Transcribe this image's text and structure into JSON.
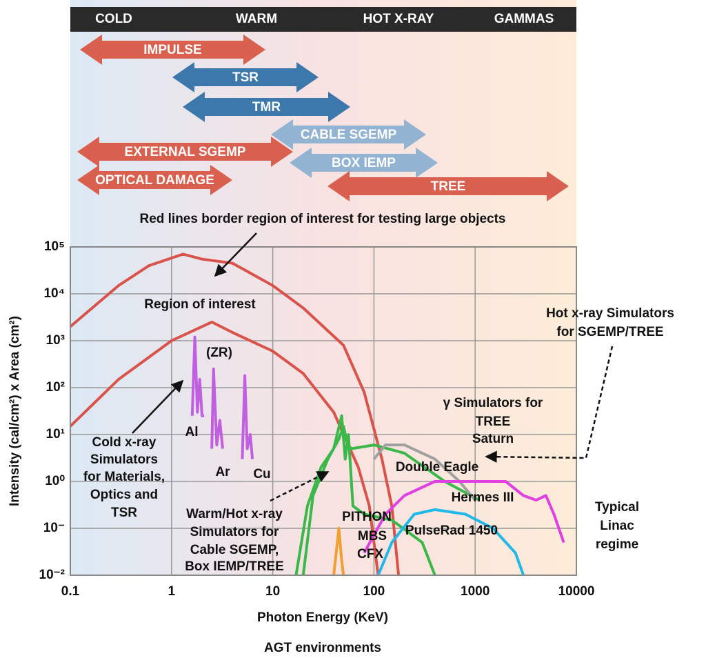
{
  "header": {
    "bands": [
      "COLD",
      "WARM",
      "HOT X-RAY",
      "GAMMAS"
    ]
  },
  "arrows": [
    "IMPULSE",
    "TSR",
    "TMR",
    "CABLE SGEMP",
    "EXTERNAL SGEMP",
    "BOX IEMP",
    "OPTICAL DAMAGE",
    "TREE"
  ],
  "chart_data": {
    "type": "line",
    "subtitle": "Red lines border region of interest for testing large objects",
    "x_label": "Photon Energy (KeV)",
    "y_label": "Intensity (cal/cm²) x Area (cm²)",
    "caption": "AGT environments",
    "xscale": "log",
    "yscale": "log",
    "grid": true,
    "xlim": [
      0.1,
      10000
    ],
    "xticks": [
      0.1,
      1,
      10,
      100,
      1000,
      10000
    ],
    "ylim": [
      0.01,
      100000
    ],
    "yticks": [
      {
        "value": 100000,
        "label": "10⁵"
      },
      {
        "value": 10000,
        "label": "10⁴"
      },
      {
        "value": 1000,
        "label": "10³"
      },
      {
        "value": 100,
        "label": "10²"
      },
      {
        "value": 10,
        "label": "10¹"
      },
      {
        "value": 1,
        "label": "10⁰"
      },
      {
        "value": 0.1,
        "label": "10⁻"
      },
      {
        "value": 0.01,
        "label": "10⁻²"
      }
    ],
    "series": [
      {
        "color": "#d9534a",
        "x": [
          0.1,
          0.3,
          0.6,
          1.3,
          2,
          4,
          10,
          20,
          50,
          80,
          120,
          150,
          175
        ],
        "values": [
          2000,
          15000,
          40000,
          70000,
          55000,
          45000,
          15000,
          5000,
          800,
          80,
          3,
          0.3,
          0.01
        ]
      },
      {
        "color": "#d9534a",
        "x": [
          0.1,
          0.3,
          1,
          2.5,
          4,
          10,
          20,
          40,
          70,
          90,
          110
        ],
        "values": [
          15,
          150,
          1000,
          2500,
          1500,
          600,
          200,
          30,
          2,
          0.3,
          0.01
        ]
      },
      {
        "name": "Al",
        "color": "#c060e0",
        "x": [
          1.6,
          1.7,
          1.8,
          1.9,
          2,
          2.1
        ],
        "values": [
          25,
          1200,
          30,
          150,
          25,
          25
        ]
      },
      {
        "name": "Ar",
        "color": "#c060e0",
        "x": [
          2.5,
          2.6,
          2.8,
          3,
          3.2
        ],
        "values": [
          5,
          250,
          6,
          20,
          5
        ]
      },
      {
        "name": "Cu",
        "color": "#c060e0",
        "x": [
          5,
          5.3,
          5.6,
          6,
          6.3
        ],
        "values": [
          3,
          180,
          5,
          10,
          3
        ]
      },
      {
        "name": "PITHON",
        "color": "#3cb84a",
        "x": [
          17,
          22,
          30,
          40,
          48,
          52,
          56,
          62,
          80,
          150,
          300,
          400
        ],
        "values": [
          0.01,
          0.3,
          2,
          5,
          25,
          3,
          10,
          0.3,
          0.2,
          0.15,
          0.05,
          0.01
        ]
      },
      {
        "name": "Double Eagle",
        "color": "#3cb84a",
        "x": [
          20,
          25,
          35,
          45,
          50,
          55,
          60,
          100,
          200,
          500,
          1100
        ],
        "values": [
          0.01,
          0.5,
          3,
          8,
          15,
          6,
          5,
          6,
          4,
          1,
          0.4
        ]
      },
      {
        "name": "Saturn",
        "color": "#a0a0a0",
        "x": [
          100,
          130,
          200,
          400,
          700,
          1000
        ],
        "values": [
          3,
          6,
          6,
          3,
          1,
          0.4
        ]
      },
      {
        "name": "Hermes III",
        "color": "#e040e0",
        "x": [
          80,
          130,
          200,
          400,
          1000,
          2000,
          3000,
          4000,
          5000,
          6000,
          7500
        ],
        "values": [
          0.03,
          0.2,
          0.5,
          1,
          1,
          1,
          0.5,
          0.4,
          0.5,
          0.2,
          0.05
        ]
      },
      {
        "name": "PulseRad 1450",
        "color": "#20b8e8",
        "x": [
          110,
          150,
          250,
          400,
          800,
          1500,
          2500,
          3000
        ],
        "values": [
          0.01,
          0.05,
          0.2,
          0.25,
          0.2,
          0.1,
          0.03,
          0.01
        ]
      },
      {
        "color": "#f0a030",
        "x": [
          40,
          45,
          48,
          50
        ],
        "values": [
          0.01,
          0.1,
          0.02,
          0.01
        ]
      }
    ],
    "annotations": {
      "region": "Region of interest",
      "zr": "(ZR)",
      "cold": [
        "Cold x-ray",
        "Simulators",
        "for Materials,",
        "Optics and",
        "TSR"
      ],
      "warm": [
        "Warm/Hot x-ray",
        "Simulators for",
        "Cable SGEMP,",
        "Box IEMP/TREE"
      ],
      "mbs": [
        "MBS",
        "CFX"
      ],
      "gamma": [
        "γ Simulators for",
        "TREE"
      ],
      "hot": [
        "Hot x-ray Simulators",
        "for SGEMP/TREE"
      ],
      "linac": [
        "Typical",
        "Linac",
        "regime"
      ]
    }
  }
}
